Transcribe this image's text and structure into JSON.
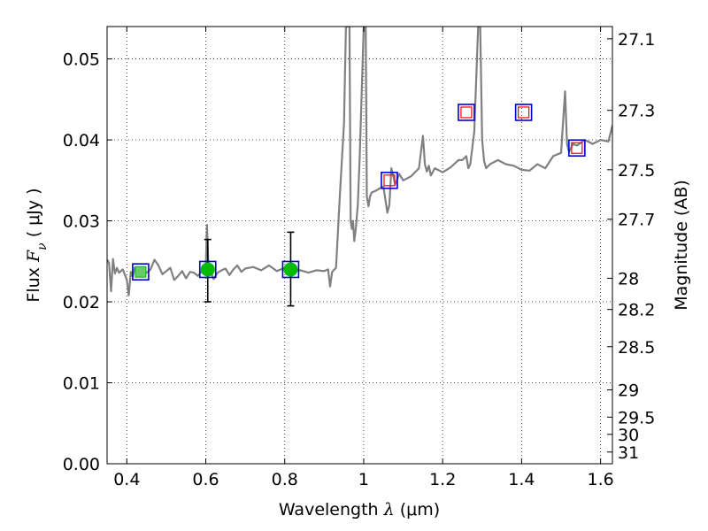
{
  "chart_data": {
    "type": "scatter",
    "xlabel": "Wavelength  λ (μm)",
    "ylabel": "Flux  F_ν  ( μJy )",
    "ylabel_parts": {
      "prefix": "Flux  ",
      "symbol": "F",
      "subscript": "ν",
      "suffix": "  ( μJy )"
    },
    "xlabel_parts": {
      "prefix": "Wavelength  ",
      "symbol": "λ",
      "suffix": " (μm)"
    },
    "right_ylabel": "Magnitude (AB)",
    "xlim": [
      0.35,
      1.63
    ],
    "ylim": [
      0.0,
      0.054
    ],
    "grid": true,
    "x_ticks": [
      {
        "value": 0.4,
        "label": "0.4"
      },
      {
        "value": 0.6,
        "label": "0.6"
      },
      {
        "value": 0.8,
        "label": "0.8"
      },
      {
        "value": 1.0,
        "label": "1"
      },
      {
        "value": 1.2,
        "label": "1.2"
      },
      {
        "value": 1.4,
        "label": "1.4"
      },
      {
        "value": 1.6,
        "label": "1.6"
      }
    ],
    "y_ticks": [
      {
        "value": 0.0,
        "label": "0.00"
      },
      {
        "value": 0.01,
        "label": "0.01"
      },
      {
        "value": 0.02,
        "label": "0.02"
      },
      {
        "value": 0.03,
        "label": "0.03"
      },
      {
        "value": 0.04,
        "label": "0.04"
      },
      {
        "value": 0.05,
        "label": "0.05"
      }
    ],
    "right_ticks": [
      {
        "mag": 27.1,
        "label": "27.1"
      },
      {
        "mag": 27.3,
        "label": "27.3"
      },
      {
        "mag": 27.5,
        "label": "27.5"
      },
      {
        "mag": 27.7,
        "label": "27.7"
      },
      {
        "mag": 28,
        "label": "28"
      },
      {
        "mag": 28.2,
        "label": "28.2"
      },
      {
        "mag": 28.5,
        "label": "28.5"
      },
      {
        "mag": 29,
        "label": "29"
      },
      {
        "mag": 29.5,
        "label": "29.5"
      },
      {
        "mag": 30,
        "label": "30"
      },
      {
        "mag": 31,
        "label": "31"
      }
    ],
    "series": [
      {
        "type": "line",
        "color": "#808080",
        "x": [
          0.35,
          0.355,
          0.36,
          0.365,
          0.37,
          0.375,
          0.38,
          0.39,
          0.4,
          0.405,
          0.41,
          0.415,
          0.42,
          0.43,
          0.44,
          0.45,
          0.46,
          0.47,
          0.48,
          0.49,
          0.5,
          0.51,
          0.52,
          0.53,
          0.54,
          0.55,
          0.56,
          0.57,
          0.58,
          0.59,
          0.6,
          0.603,
          0.606,
          0.61,
          0.62,
          0.63,
          0.64,
          0.65,
          0.66,
          0.67,
          0.68,
          0.69,
          0.7,
          0.72,
          0.74,
          0.76,
          0.78,
          0.8,
          0.82,
          0.84,
          0.86,
          0.88,
          0.9,
          0.91,
          0.915,
          0.92,
          0.93,
          0.94,
          0.95,
          0.955,
          0.958,
          0.961,
          0.964,
          0.967,
          0.97,
          0.973,
          0.976,
          0.98,
          0.985,
          0.99,
          1.0,
          1.005,
          1.008,
          1.012,
          1.016,
          1.02,
          1.03,
          1.04,
          1.05,
          1.06,
          1.065,
          1.07,
          1.08,
          1.09,
          1.1,
          1.12,
          1.14,
          1.15,
          1.155,
          1.16,
          1.165,
          1.17,
          1.18,
          1.2,
          1.22,
          1.24,
          1.25,
          1.26,
          1.265,
          1.27,
          1.28,
          1.29,
          1.295,
          1.3,
          1.305,
          1.31,
          1.32,
          1.34,
          1.36,
          1.38,
          1.4,
          1.42,
          1.44,
          1.46,
          1.48,
          1.5,
          1.51,
          1.515,
          1.52,
          1.525,
          1.53,
          1.54,
          1.56,
          1.58,
          1.6,
          1.62,
          1.63
        ],
        "y": [
          0.0252,
          0.0248,
          0.0213,
          0.0253,
          0.0235,
          0.0242,
          0.0236,
          0.024,
          0.0227,
          0.0208,
          0.0237,
          0.0231,
          0.0242,
          0.0236,
          0.0233,
          0.0236,
          0.024,
          0.0252,
          0.0245,
          0.0234,
          0.0238,
          0.0242,
          0.0227,
          0.0232,
          0.0238,
          0.0229,
          0.0237,
          0.0236,
          0.0232,
          0.0238,
          0.0242,
          0.0295,
          0.025,
          0.024,
          0.0228,
          0.0236,
          0.0239,
          0.0241,
          0.0233,
          0.024,
          0.0245,
          0.0237,
          0.0241,
          0.0243,
          0.0239,
          0.0245,
          0.0238,
          0.0242,
          0.0238,
          0.0239,
          0.0236,
          0.0239,
          0.0238,
          0.024,
          0.0219,
          0.0237,
          0.0242,
          0.0335,
          0.042,
          0.054,
          0.054,
          0.054,
          0.054,
          0.03,
          0.029,
          0.03,
          0.0275,
          0.029,
          0.032,
          0.038,
          0.054,
          0.054,
          0.033,
          0.0318,
          0.033,
          0.0335,
          0.0337,
          0.034,
          0.0342,
          0.031,
          0.032,
          0.0365,
          0.0345,
          0.0358,
          0.035,
          0.0355,
          0.0365,
          0.0405,
          0.037,
          0.0361,
          0.0368,
          0.0356,
          0.0365,
          0.036,
          0.0366,
          0.0375,
          0.0375,
          0.038,
          0.0365,
          0.037,
          0.041,
          0.054,
          0.054,
          0.04,
          0.0374,
          0.0365,
          0.037,
          0.0375,
          0.037,
          0.0368,
          0.0363,
          0.0362,
          0.037,
          0.0365,
          0.038,
          0.0384,
          0.046,
          0.0395,
          0.0385,
          0.039,
          0.0395,
          0.0393,
          0.04,
          0.0395,
          0.04,
          0.0398,
          0.0418
        ]
      }
    ],
    "squares": [
      {
        "x": 0.435,
        "y": 0.0237,
        "inner": "green"
      },
      {
        "x": 0.605,
        "y": 0.024,
        "inner": "green"
      },
      {
        "x": 0.815,
        "y": 0.024,
        "inner": "green"
      },
      {
        "x": 1.065,
        "y": 0.035,
        "inner": "red"
      },
      {
        "x": 1.26,
        "y": 0.0434,
        "inner": "red"
      },
      {
        "x": 1.405,
        "y": 0.0434,
        "inner": "red"
      },
      {
        "x": 1.54,
        "y": 0.039,
        "inner": "red"
      }
    ],
    "points": [
      {
        "x": 0.605,
        "y": 0.024,
        "yerr_low": 0.02,
        "yerr_high": 0.0277
      },
      {
        "x": 0.815,
        "y": 0.024,
        "yerr_low": 0.0195,
        "yerr_high": 0.0286
      }
    ],
    "colors": {
      "spectrum": "#808080",
      "square_edge": "#0000cc",
      "green_fill": "#00bb00",
      "red_edge": "#ff0000",
      "error_bar": "#000000",
      "grid": "#000000"
    }
  }
}
